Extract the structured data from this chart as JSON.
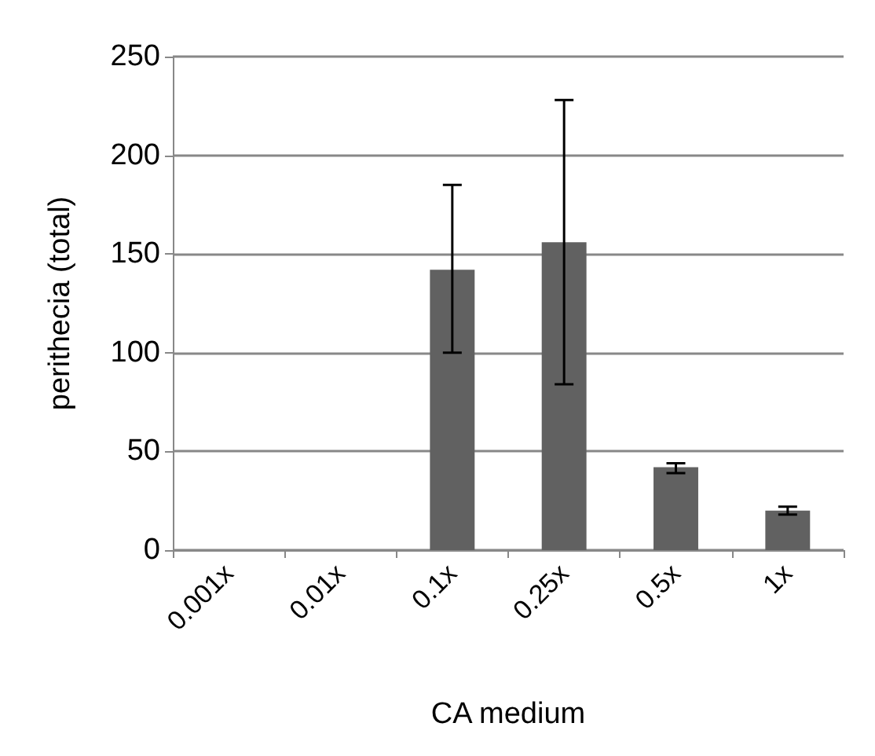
{
  "chart_data": {
    "type": "bar",
    "xlabel": "CA medium",
    "ylabel": "perithecia (total)",
    "categories": [
      "0.001x",
      "0.01x",
      "0.1x",
      "0.25x",
      "0.5x",
      "1x"
    ],
    "values": [
      0,
      0,
      142,
      156,
      42,
      20
    ],
    "errors": [
      null,
      null,
      [
        100,
        185
      ],
      [
        84,
        228
      ],
      [
        39,
        44
      ],
      [
        18,
        22
      ]
    ],
    "color": "#616161",
    "ylim": [
      0,
      250
    ],
    "yticks": [
      0,
      50,
      100,
      150,
      200,
      250
    ],
    "grid": "y"
  }
}
